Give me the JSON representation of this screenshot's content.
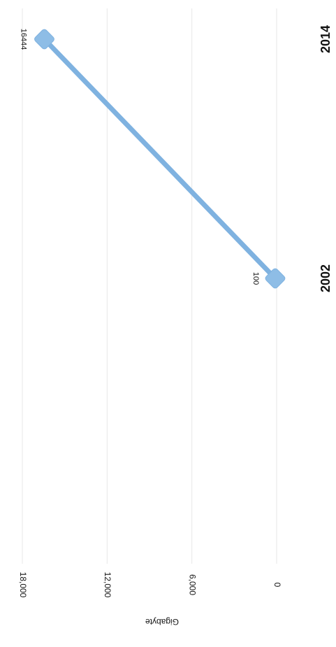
{
  "chart_data": {
    "type": "line",
    "orientation": "rotated-90",
    "ylabel": "Gigabyte",
    "categories": [
      "2002",
      "2014"
    ],
    "values": [
      100,
      16444
    ],
    "data_labels": [
      "100",
      "16444"
    ],
    "ylim": [
      0,
      18000
    ],
    "y_ticks": [
      0,
      6000,
      12000,
      18000
    ],
    "y_tick_labels": [
      "0",
      "6,000",
      "12,000",
      "18,000"
    ],
    "grid": true,
    "legend": "none",
    "colors": {
      "line": "#7fb2e0",
      "marker": "#8ebde6",
      "gridline": "#e7e7e7",
      "text": "#111111"
    }
  }
}
